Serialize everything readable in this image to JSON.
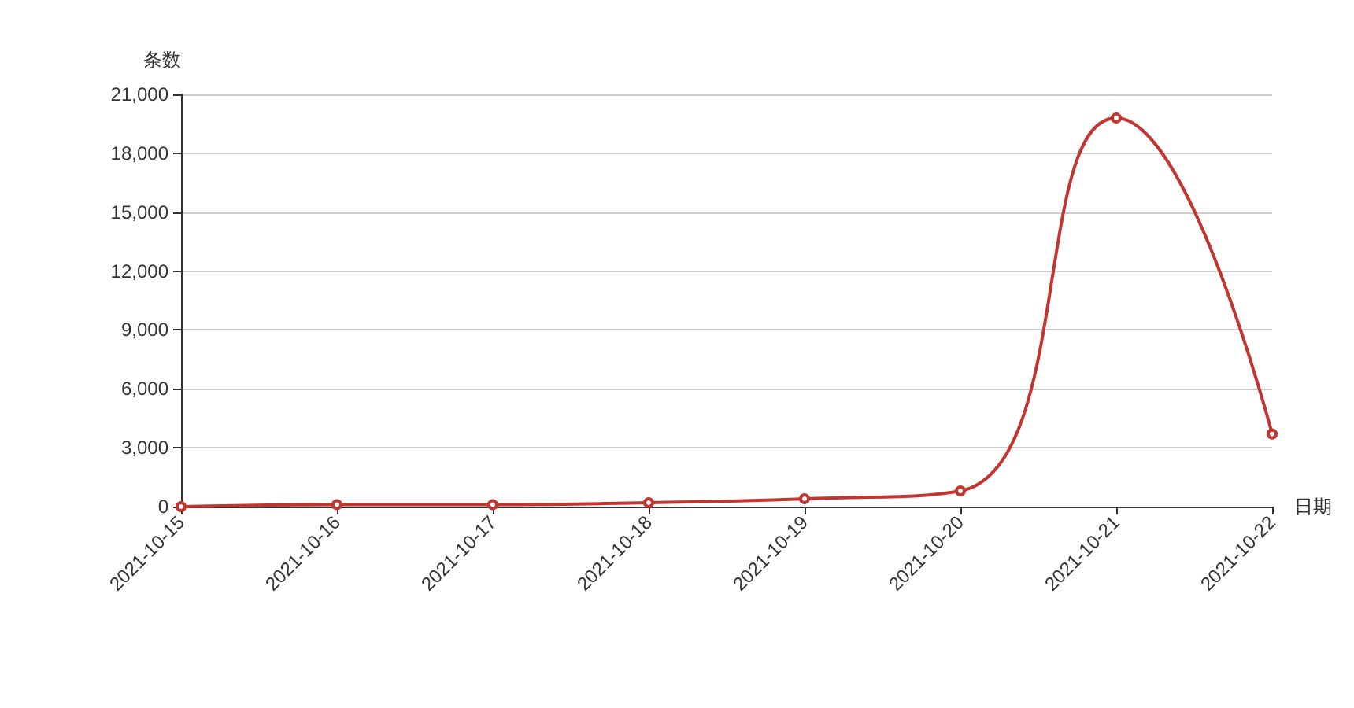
{
  "chart_data": {
    "type": "line",
    "xlabel": "日期",
    "ylabel": "条数",
    "categories": [
      "2021-10-15",
      "2021-10-16",
      "2021-10-17",
      "2021-10-18",
      "2021-10-19",
      "2021-10-20",
      "2021-10-21",
      "2021-10-22"
    ],
    "series": [
      {
        "color": "#c23531",
        "values": [
          0,
          100,
          100,
          200,
          400,
          800,
          19800,
          3700
        ]
      }
    ],
    "ylim": [
      0,
      21000
    ],
    "yticks": [
      0,
      {
        "value": 3000,
        "label": "3,000"
      },
      {
        "value": 6000,
        "label": "6,000"
      },
      {
        "value": 9000,
        "label": "9,000"
      },
      {
        "value": 12000,
        "label": "12,000"
      },
      {
        "value": 15000,
        "label": "15,000"
      },
      {
        "value": 18000,
        "label": "18,000"
      },
      {
        "value": 21000,
        "label": "21,000"
      }
    ],
    "grid": "y",
    "marker": "circle",
    "line_style": "solid"
  }
}
